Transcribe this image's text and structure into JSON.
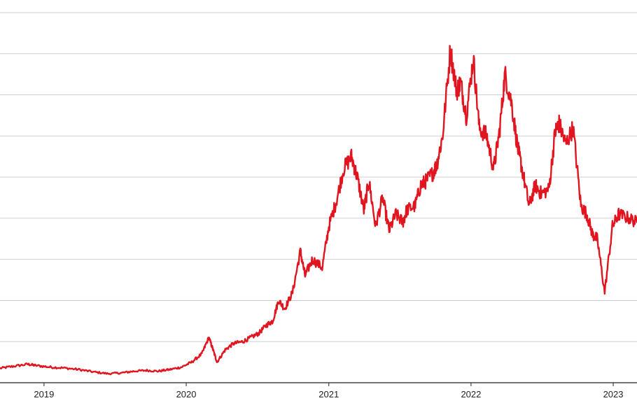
{
  "chart_data": {
    "type": "line",
    "title": "",
    "xlabel": "",
    "ylabel": "",
    "x_ticks": [
      "2019",
      "2020",
      "2021",
      "2022",
      "2023"
    ],
    "x_tick_dates": [
      "2019-01-01",
      "2020-01-01",
      "2021-01-01",
      "2022-01-01",
      "2023-01-01"
    ],
    "xlim": [
      "2018-09-10",
      "2023-03-03"
    ],
    "ylim": [
      0,
      9
    ],
    "grid": true,
    "y_tick_labels_shown": false,
    "legend": "none",
    "color": "#e0151f",
    "series": [
      {
        "x": [
          "2018-09-10",
          "2018-10-15",
          "2018-11-20",
          "2018-12-10",
          "2019-01-15",
          "2019-02-20",
          "2019-04-01",
          "2019-05-10",
          "2019-06-15",
          "2019-07-20",
          "2019-08-20",
          "2019-09-20",
          "2019-10-20",
          "2019-11-20",
          "2019-12-20",
          "2020-01-15",
          "2020-02-10",
          "2020-02-28",
          "2020-03-10",
          "2020-03-20",
          "2020-04-10",
          "2020-05-01",
          "2020-05-25",
          "2020-06-15",
          "2020-07-05",
          "2020-07-25",
          "2020-08-10",
          "2020-08-25",
          "2020-09-10",
          "2020-09-30",
          "2020-10-20",
          "2020-11-01",
          "2020-11-20",
          "2020-12-15",
          "2021-01-01",
          "2021-01-20",
          "2021-02-08",
          "2021-02-28",
          "2021-03-15",
          "2021-04-01",
          "2021-04-14",
          "2021-05-01",
          "2021-05-19",
          "2021-06-05",
          "2021-06-22",
          "2021-07-10",
          "2021-07-20",
          "2021-08-10",
          "2021-08-25",
          "2021-09-07",
          "2021-09-25",
          "2021-10-05",
          "2021-10-20",
          "2021-11-09",
          "2021-11-25",
          "2021-12-05",
          "2021-12-20",
          "2022-01-07",
          "2022-01-22",
          "2022-02-10",
          "2022-02-28",
          "2022-03-15",
          "2022-03-29",
          "2022-04-15",
          "2022-05-01",
          "2022-05-12",
          "2022-05-30",
          "2022-06-15",
          "2022-06-30",
          "2022-07-20",
          "2022-08-05",
          "2022-08-15",
          "2022-09-01",
          "2022-09-20",
          "2022-10-10",
          "2022-10-25",
          "2022-11-09",
          "2022-11-21",
          "2022-12-10",
          "2022-12-30",
          "2023-01-15",
          "2023-02-10",
          "2023-03-03"
        ],
        "values": [
          0.35,
          0.4,
          0.45,
          0.42,
          0.38,
          0.36,
          0.32,
          0.26,
          0.22,
          0.24,
          0.28,
          0.3,
          0.28,
          0.32,
          0.38,
          0.5,
          0.7,
          1.1,
          0.8,
          0.5,
          0.8,
          0.95,
          1.0,
          1.1,
          1.2,
          1.4,
          1.5,
          2.0,
          1.8,
          2.2,
          3.2,
          2.6,
          3.0,
          2.8,
          3.8,
          4.4,
          5.2,
          5.5,
          5.0,
          4.2,
          4.9,
          3.8,
          4.5,
          3.7,
          4.1,
          3.9,
          4.2,
          4.3,
          4.8,
          4.9,
          5.1,
          5.3,
          6.0,
          8.1,
          7.1,
          7.3,
          6.5,
          7.9,
          6.2,
          6.0,
          5.2,
          6.1,
          7.5,
          6.8,
          5.7,
          5.2,
          4.3,
          4.8,
          4.6,
          4.7,
          6.1,
          6.3,
          5.8,
          6.2,
          4.3,
          4.1,
          3.6,
          3.5,
          2.2,
          3.8,
          4.1,
          4.0,
          3.9
        ]
      }
    ]
  }
}
